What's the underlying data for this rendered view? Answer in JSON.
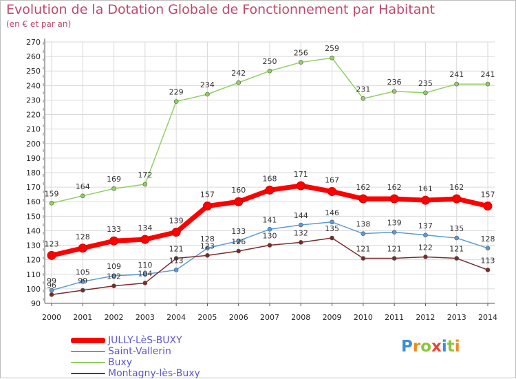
{
  "header": {
    "title": "Evolution de la Dotation Globale de Fonctionnement par Habitant",
    "subtitle": "(en € et par an)"
  },
  "logo": {
    "text": "Proxiti"
  },
  "colors": {
    "title": "#c0486a",
    "legend_text": "#5b57d6",
    "grid": "#d9d9d9",
    "axis": "#555555"
  },
  "chart_data": {
    "type": "line",
    "title": "Evolution de la Dotation Globale de Fonctionnement par Habitant",
    "subtitle": "(en € et par an)",
    "xlabel": "",
    "ylabel": "",
    "x": [
      "2000",
      "2001",
      "2002",
      "2003",
      "2004",
      "2005",
      "2006",
      "2007",
      "2008",
      "2009",
      "2010",
      "2011",
      "2012",
      "2013",
      "2014"
    ],
    "ylim": [
      90,
      270
    ],
    "ytick_step": 10,
    "grid": true,
    "legend_position": "bottom-left",
    "series": [
      {
        "name": "JULLY-LèS-BUXY",
        "color": "#ff0000",
        "values": [
          123,
          128,
          133,
          134,
          139,
          157,
          160,
          168,
          171,
          167,
          162,
          162,
          161,
          162,
          157
        ],
        "labels": [
          "123",
          "128",
          "133",
          "134",
          "139",
          "157",
          "160",
          "168",
          "171",
          "167",
          "162",
          "162",
          "161",
          "162",
          "157"
        ]
      },
      {
        "name": "Saint-Vallerin",
        "color": "#5b9bd5",
        "values": [
          99,
          105,
          109,
          110,
          113,
          128,
          133,
          141,
          144,
          146,
          138,
          139,
          137,
          135,
          128
        ],
        "labels": [
          "99",
          "105",
          "109",
          "110",
          "113",
          "128",
          "133",
          "141",
          "144",
          "146",
          "138",
          "139",
          "137",
          "135",
          "128"
        ]
      },
      {
        "name": "Buxy",
        "color": "#8fd160",
        "values": [
          159,
          164,
          169,
          172,
          229,
          234,
          242,
          250,
          256,
          259,
          231,
          236,
          235,
          241,
          241
        ],
        "labels": [
          "159",
          "164",
          "169",
          "172",
          "229",
          "234",
          "242",
          "250",
          "256",
          "259",
          "231",
          "236",
          "235",
          "241",
          "241"
        ]
      },
      {
        "name": "Montagny-lès-Buxy",
        "color": "#7a2a2a",
        "values": [
          96,
          99,
          102,
          104,
          121,
          123,
          126,
          130,
          132,
          135,
          121,
          121,
          122,
          121,
          113
        ],
        "labels": [
          "96",
          "99",
          "102",
          "104",
          "121",
          "123",
          "126",
          "130",
          "132",
          "135",
          "121",
          "121",
          "122",
          "121",
          "113"
        ]
      }
    ]
  }
}
